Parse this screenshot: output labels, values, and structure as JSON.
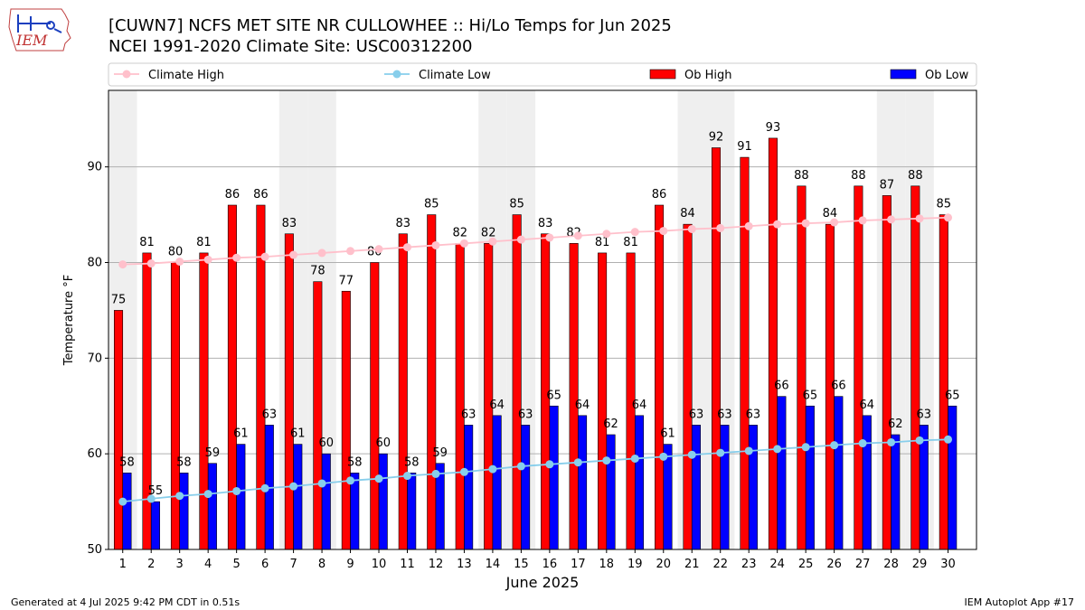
{
  "header": {
    "title_line1": "[CUWN7] NCFS MET SITE NR CULLOWHEE :: Hi/Lo Temps for Jun 2025",
    "title_line2": "NCEI 1991-2020 Climate Site: USC00312200"
  },
  "logo": {
    "text": "IEM",
    "icon": "iem-iowa-logo-icon"
  },
  "footer": {
    "generated": "Generated at 4 Jul 2025 9:42 PM CDT in 0.51s",
    "app": "IEM Autoplot App #17"
  },
  "colors": {
    "ob_high": "#ff0000",
    "ob_low": "#0000ff",
    "climate_high": "#ffc0cb",
    "climate_low": "#87ceeb",
    "weekend_shade": "#efefef",
    "grid": "#b0b0b0"
  },
  "chart_data": {
    "type": "bar",
    "title": "[CUWN7] NCFS MET SITE NR CULLOWHEE :: Hi/Lo Temps for Jun 2025",
    "xlabel": "June 2025",
    "ylabel": "Temperature °F",
    "ylim": [
      50,
      98
    ],
    "yticks": [
      50,
      60,
      70,
      80,
      90
    ],
    "grid": "horizontal",
    "legend": "top, above plot",
    "shaded_days": [
      1,
      7,
      8,
      14,
      15,
      21,
      22,
      28,
      29
    ],
    "categories": [
      1,
      2,
      3,
      4,
      5,
      6,
      7,
      8,
      9,
      10,
      11,
      12,
      13,
      14,
      15,
      16,
      17,
      18,
      19,
      20,
      21,
      22,
      23,
      24,
      25,
      26,
      27,
      28,
      29,
      30
    ],
    "series": [
      {
        "name": "Ob High",
        "type": "bar",
        "values": [
          75,
          81,
          80,
          81,
          86,
          86,
          83,
          78,
          77,
          80,
          83,
          85,
          82,
          82,
          85,
          83,
          82,
          81,
          81,
          86,
          84,
          92,
          91,
          93,
          88,
          84,
          88,
          87,
          88,
          85
        ]
      },
      {
        "name": "Ob Low",
        "type": "bar",
        "values": [
          58,
          55,
          58,
          59,
          61,
          63,
          61,
          60,
          58,
          60,
          58,
          59,
          63,
          64,
          63,
          65,
          64,
          62,
          64,
          61,
          63,
          63,
          63,
          66,
          65,
          66,
          64,
          62,
          63,
          65
        ]
      },
      {
        "name": "Climate High",
        "type": "line",
        "values": [
          79.8,
          79.9,
          80.1,
          80.3,
          80.5,
          80.6,
          80.8,
          81.0,
          81.2,
          81.4,
          81.6,
          81.8,
          82.0,
          82.2,
          82.4,
          82.6,
          82.8,
          83.0,
          83.2,
          83.3,
          83.5,
          83.6,
          83.8,
          84.0,
          84.1,
          84.2,
          84.4,
          84.5,
          84.6,
          84.7
        ]
      },
      {
        "name": "Climate Low",
        "type": "line",
        "values": [
          55.0,
          55.3,
          55.6,
          55.8,
          56.1,
          56.4,
          56.6,
          56.9,
          57.2,
          57.4,
          57.7,
          57.9,
          58.1,
          58.4,
          58.7,
          58.9,
          59.1,
          59.3,
          59.5,
          59.7,
          59.9,
          60.1,
          60.3,
          60.5,
          60.7,
          60.9,
          61.1,
          61.2,
          61.4,
          61.5
        ]
      }
    ]
  }
}
